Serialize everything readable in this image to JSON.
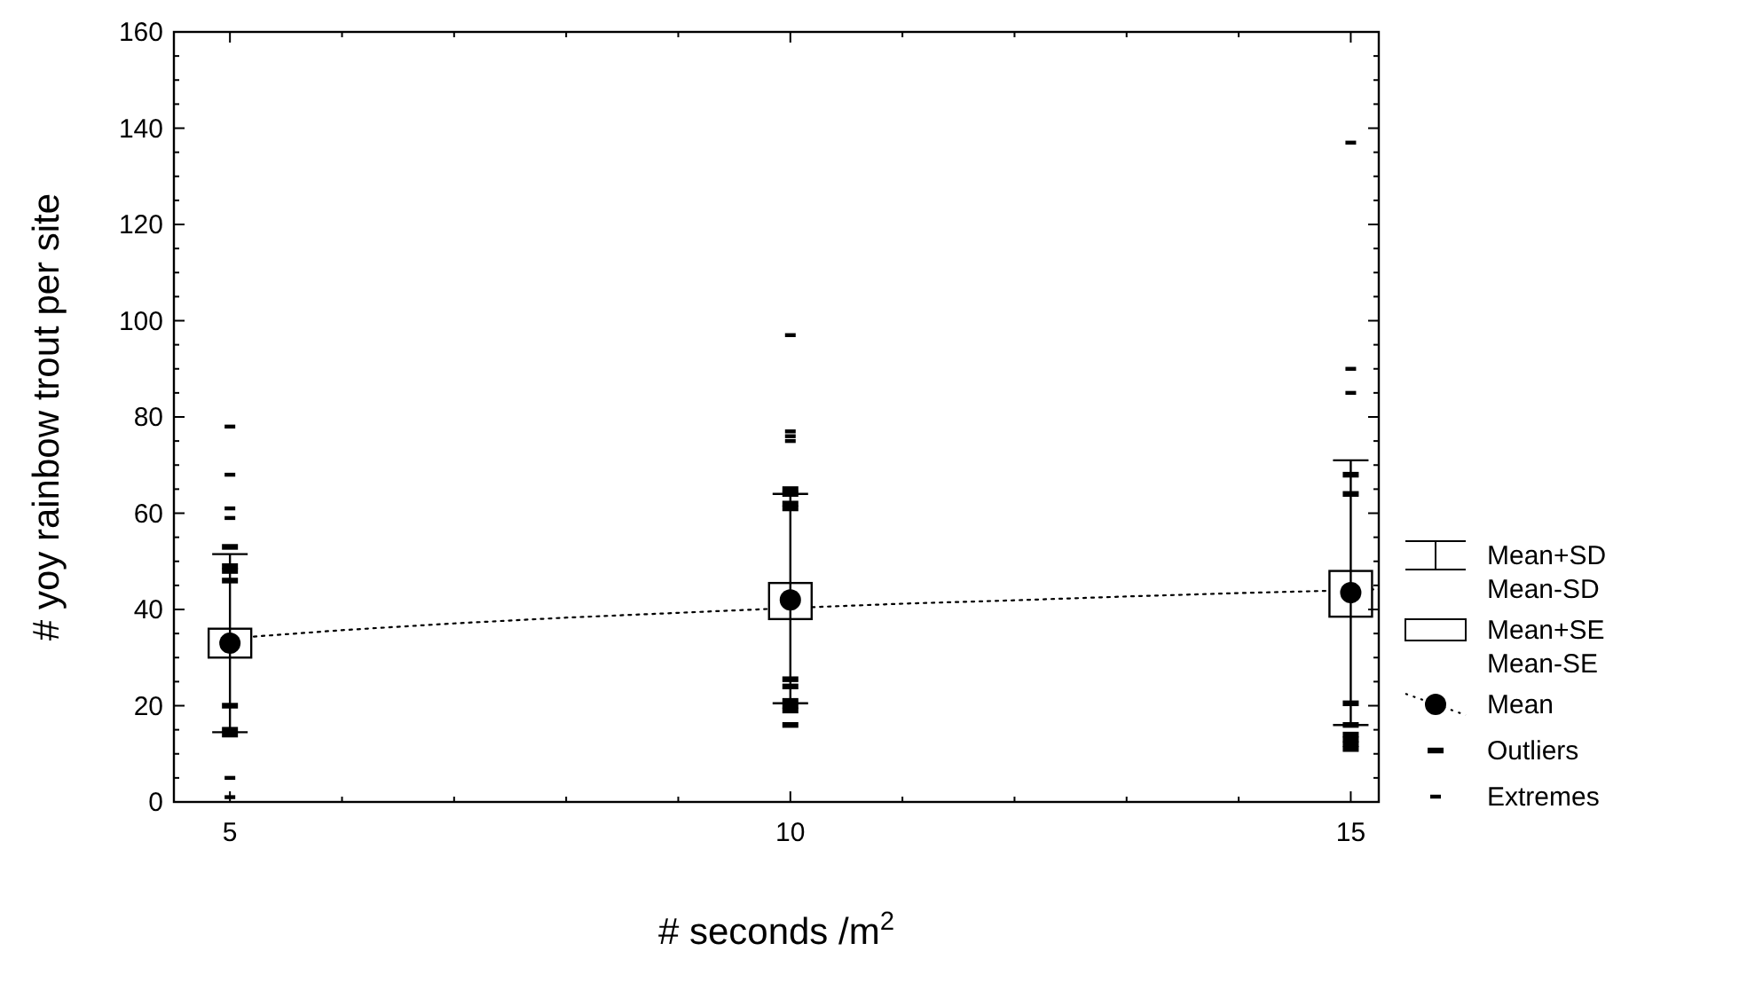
{
  "chart_data": {
    "type": "scatter",
    "xlabel": "# seconds /m$^{2}$",
    "ylabel": "# yoy rainbow trout per site",
    "xlim": [
      4.5,
      15.25
    ],
    "xticks": [
      5,
      {
        "value": 6,
        "label": null
      },
      {
        "value": 7,
        "label": null
      },
      {
        "value": 8,
        "label": null
      },
      {
        "value": 9,
        "label": null
      },
      10,
      {
        "value": 11,
        "label": null
      },
      {
        "value": 12,
        "label": null
      },
      {
        "value": 13,
        "label": null
      },
      {
        "value": 14,
        "label": null
      },
      15
    ],
    "ylim": [
      0,
      160
    ],
    "yticks": [
      0,
      {
        "value": 5,
        "label": null
      },
      {
        "value": 10,
        "label": null
      },
      {
        "value": 15,
        "label": null
      },
      20,
      {
        "value": 25,
        "label": null
      },
      {
        "value": 30,
        "label": null
      },
      {
        "value": 35,
        "label": null
      },
      40,
      {
        "value": 45,
        "label": null
      },
      {
        "value": 50,
        "label": null
      },
      {
        "value": 55,
        "label": null
      },
      60,
      {
        "value": 65,
        "label": null
      },
      {
        "value": 70,
        "label": null
      },
      {
        "value": 75,
        "label": null
      },
      80,
      {
        "value": 85,
        "label": null
      },
      {
        "value": 90,
        "label": null
      },
      {
        "value": 95,
        "label": null
      },
      100,
      {
        "value": 105,
        "label": null
      },
      {
        "value": 110,
        "label": null
      },
      {
        "value": 115,
        "label": null
      },
      120,
      {
        "value": 125,
        "label": null
      },
      {
        "value": 130,
        "label": null
      },
      {
        "value": 135,
        "label": null
      },
      140,
      {
        "value": 145,
        "label": null
      },
      {
        "value": 150,
        "label": null
      },
      {
        "value": 155,
        "label": null
      },
      160
    ],
    "grid": false,
    "legend": "right",
    "annotations": [
      "Mean+SD\nMean-SD"
    ],
    "series": [
      {
        "type": "bar",
        "name": "Mean+SE\nMean-SE",
        "color": "#ffffff",
        "x": [
          5,
          10,
          15
        ],
        "base": [
          30,
          38,
          38.5
        ],
        "values": [
          6,
          7.5,
          9.5
        ]
      },
      {
        "name": "Mean",
        "color": "#000000",
        "marker": "circle",
        "x": [
          5,
          10,
          15
        ],
        "values": [
          33,
          42,
          43.5
        ],
        "errors": [
          [
            14.5,
            51.5
          ],
          [
            20.5,
            64
          ],
          [
            16,
            71
          ]
        ]
      },
      {
        "type": "line",
        "color": "#000000",
        "line_style": "dotted",
        "x": [
          5,
          6,
          7,
          8,
          9,
          10,
          11,
          12,
          13,
          14,
          15,
          15.25
        ],
        "values": [
          34,
          35.7,
          37.1,
          38.3,
          39.3,
          40.3,
          41.2,
          41.9,
          42.7,
          43.4,
          44,
          44.2
        ]
      },
      {
        "type": "scatter",
        "name": "Outliers",
        "color": "#000000",
        "marker": "square",
        "x": [
          5,
          5,
          5,
          5,
          5,
          5,
          5,
          10,
          10,
          10,
          10,
          10,
          10,
          10,
          10,
          10,
          10,
          15,
          15,
          15,
          15,
          15,
          15,
          15,
          15
        ],
        "values": [
          53,
          49,
          48,
          46,
          20,
          15,
          14,
          65,
          64,
          62,
          61,
          25.5,
          24,
          21,
          20,
          19,
          16,
          68,
          64,
          20.5,
          16,
          14,
          13,
          12,
          11
        ]
      },
      {
        "type": "scatter",
        "name": "Extremes",
        "color": "#000000",
        "marker": "square",
        "x": [
          5,
          5,
          5,
          5,
          5,
          5,
          10,
          10,
          10,
          10,
          15,
          15,
          15
        ],
        "values": [
          78,
          68,
          61,
          59,
          5,
          1,
          97,
          77,
          76,
          75,
          137,
          90,
          85
        ]
      }
    ]
  }
}
